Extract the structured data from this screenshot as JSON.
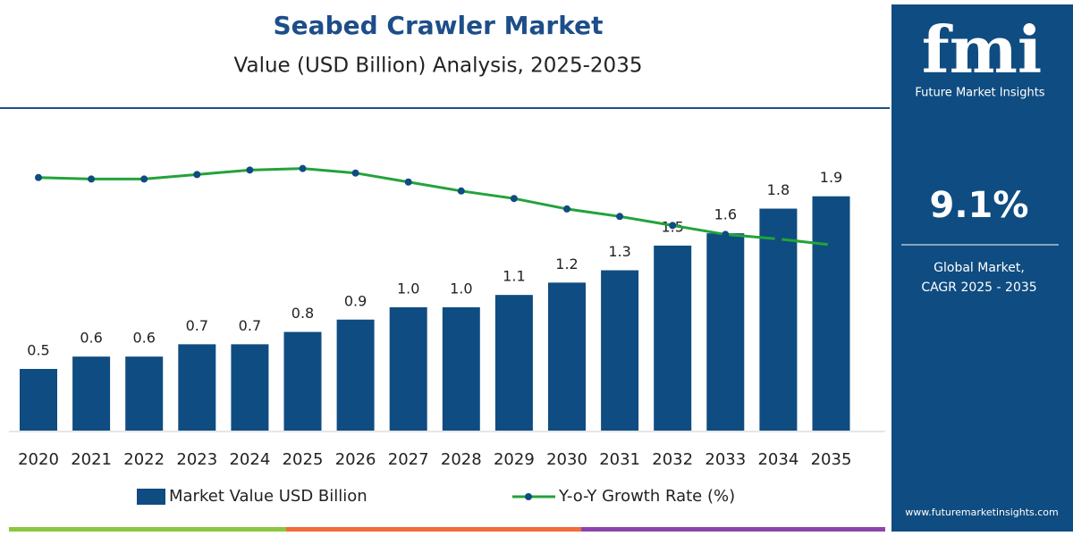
{
  "chart_data": {
    "type": "bar-line",
    "title": "Seabed Crawler Market",
    "subtitle": "Value (USD Billion) Analysis, 2025-2035",
    "categories": [
      "2020",
      "2021",
      "2022",
      "2023",
      "2024",
      "2025",
      "2026",
      "2027",
      "2028",
      "2029",
      "2030",
      "2031",
      "2032",
      "2033",
      "2034",
      "2035"
    ],
    "series": [
      {
        "name": "Market Value USD Billion",
        "type": "bar",
        "color": "#0f4c81",
        "values": [
          0.5,
          0.6,
          0.6,
          0.7,
          0.7,
          0.8,
          0.9,
          1.0,
          1.0,
          1.1,
          1.2,
          1.3,
          1.5,
          1.6,
          1.8,
          1.9
        ],
        "value_labels": [
          "0.5",
          "0.6",
          "0.6",
          "0.7",
          "0.7",
          "0.8",
          "0.9",
          "1.0",
          "1.0",
          "1.1",
          "1.2",
          "1.3",
          "1.5",
          "1.6",
          "1.8",
          "1.9"
        ]
      },
      {
        "name": "Y-o-Y Growth Rate (%)",
        "type": "line",
        "axis": "y2",
        "color": "#22a33a",
        "values": [
          11.9,
          11.8,
          11.8,
          12.1,
          12.4,
          12.5,
          12.2,
          11.6,
          11.0,
          10.5,
          9.8,
          9.3,
          8.7,
          8.1,
          7.8,
          7.4
        ]
      }
    ],
    "ylim": [
      0,
      2.55
    ],
    "y2lim": [
      -5,
      16
    ]
  },
  "sidebar": {
    "logo": "fmi",
    "brand": "Future Market Insights",
    "cagr": "9.1%",
    "cagr_caption_1": "Global Market,",
    "cagr_caption_2": "CAGR 2025 - 2035",
    "website": "www.futuremarketinsights.com"
  }
}
